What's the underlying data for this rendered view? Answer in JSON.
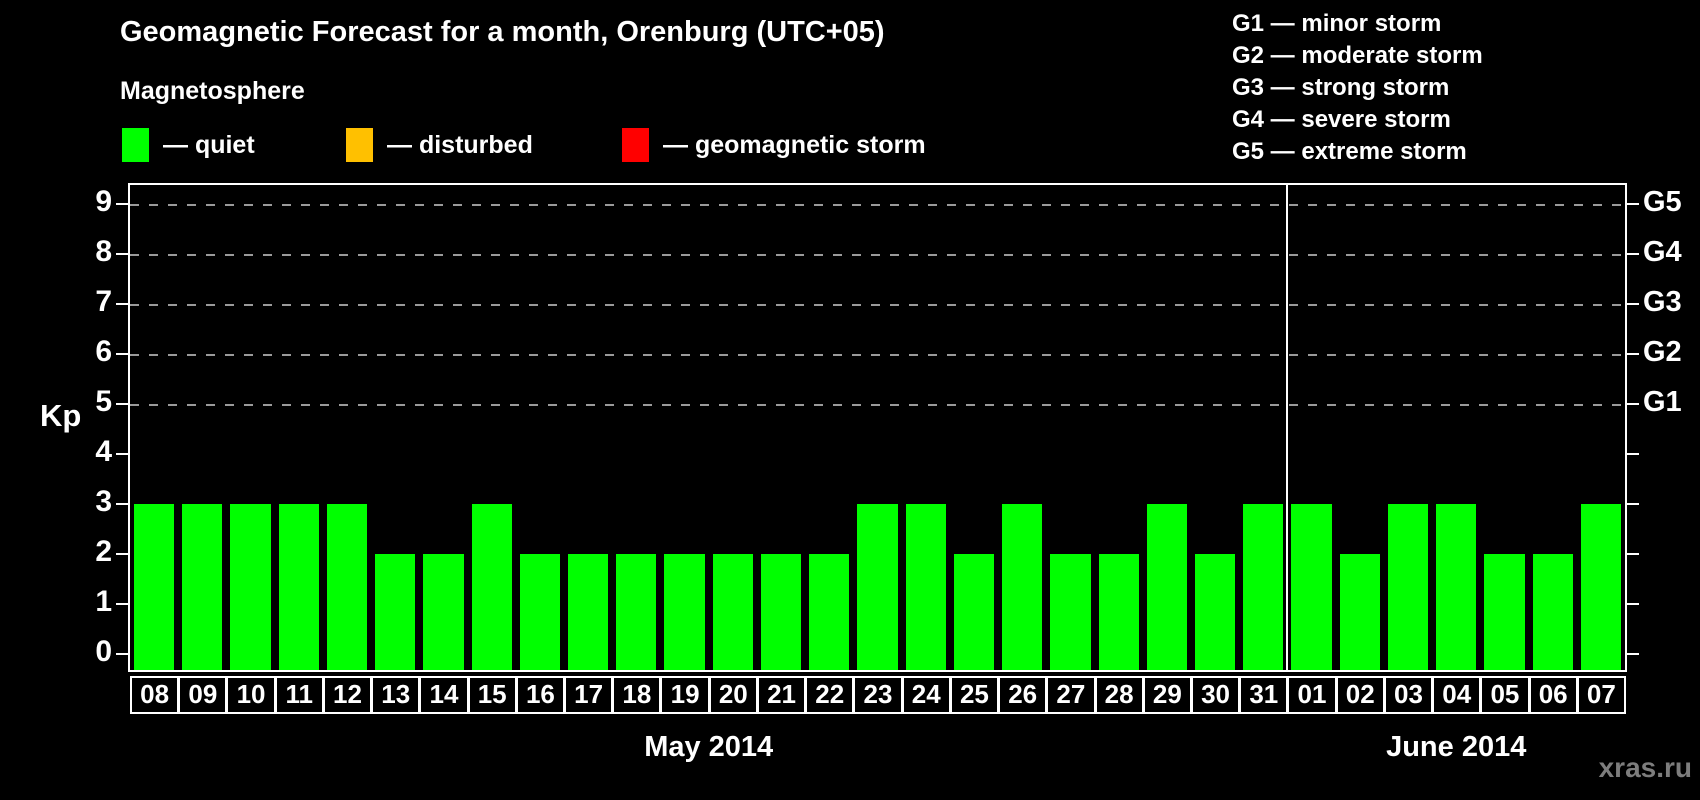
{
  "title": "Geomagnetic Forecast for a month, Orenburg (UTC+05)",
  "legend": {
    "heading": "Magnetosphere",
    "items": [
      {
        "name": "quiet",
        "label": "— quiet",
        "color": "#00ff00"
      },
      {
        "name": "disturbed",
        "label": "— disturbed",
        "color": "#ffc000"
      },
      {
        "name": "geomagnetic-storm",
        "label": "— geomagnetic storm",
        "color": "#ff0000"
      }
    ]
  },
  "g_scale_legend": [
    "G1 — minor storm",
    "G2 — moderate storm",
    "G3 — strong storm",
    "G4 — severe storm",
    "G5 — extreme storm"
  ],
  "watermark": "xras.ru",
  "chart_data": {
    "type": "bar",
    "title": "Geomagnetic Forecast for a month, Orenburg (UTC+05)",
    "ylabel": "Kp",
    "ylim": [
      0,
      9.4
    ],
    "y_ticks": [
      0,
      1,
      2,
      3,
      4,
      5,
      6,
      7,
      8,
      9
    ],
    "gridlines_kp": [
      5,
      6,
      7,
      8,
      9
    ],
    "grid_style": "dashed horizontal lines at Kp 5-9 only",
    "legend_position": "top",
    "bar_color": "#00ff00",
    "right_axis": [
      {
        "kp": 5,
        "label": "G1"
      },
      {
        "kp": 6,
        "label": "G2"
      },
      {
        "kp": 7,
        "label": "G3"
      },
      {
        "kp": 8,
        "label": "G4"
      },
      {
        "kp": 9,
        "label": "G5"
      }
    ],
    "months": [
      {
        "label": "May 2014",
        "days": [
          "08",
          "09",
          "10",
          "11",
          "12",
          "13",
          "14",
          "15",
          "16",
          "17",
          "18",
          "19",
          "20",
          "21",
          "22",
          "23",
          "24",
          "25",
          "26",
          "27",
          "28",
          "29",
          "30",
          "31"
        ],
        "values": [
          3,
          3,
          3,
          3,
          3,
          2,
          2,
          3,
          2,
          2,
          2,
          2,
          2,
          2,
          2,
          3,
          3,
          2,
          3,
          2,
          2,
          3,
          2,
          3
        ]
      },
      {
        "label": "June 2014",
        "days": [
          "01",
          "02",
          "03",
          "04",
          "05",
          "06",
          "07"
        ],
        "values": [
          3,
          2,
          3,
          3,
          2,
          2,
          3
        ]
      }
    ]
  }
}
